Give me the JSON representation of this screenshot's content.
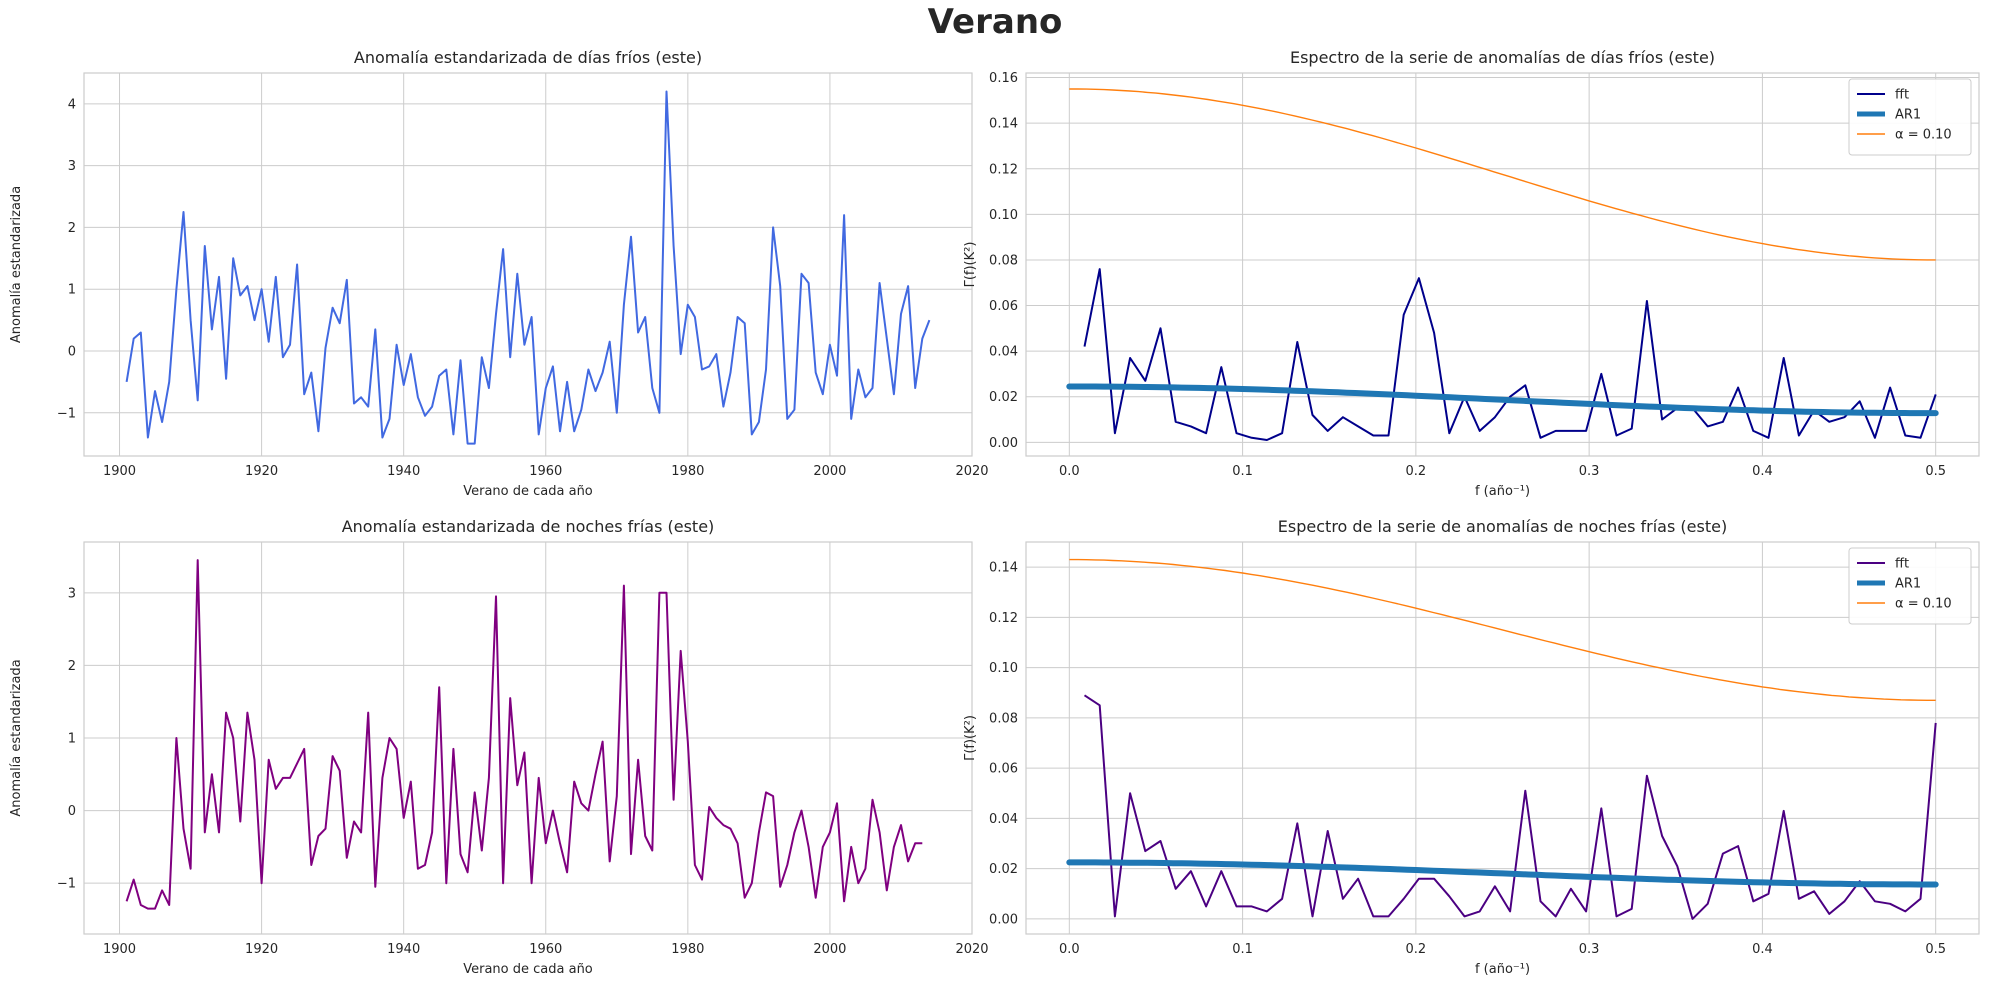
{
  "suptitle": "Verano",
  "chart_data": [
    {
      "type": "line",
      "title": "Anomalía estandarizada de días fríos (este)",
      "xlabel": "Verano de cada año",
      "ylabel": "Anomalía estandarizada",
      "xlim": [
        1895,
        2020
      ],
      "ylim": [
        -1.7,
        4.5
      ],
      "xticks": [
        1900,
        1920,
        1940,
        1960,
        1980,
        2000,
        2020
      ],
      "yticks": [
        -1,
        0,
        1,
        2,
        3,
        4
      ],
      "grid": true,
      "color": "#4169e1",
      "x_start": 1901,
      "y": [
        -0.5,
        0.2,
        0.3,
        -1.4,
        -0.65,
        -1.15,
        -0.5,
        1.0,
        2.25,
        0.5,
        -0.8,
        1.7,
        0.35,
        1.2,
        -0.45,
        1.5,
        0.9,
        1.05,
        0.5,
        1.0,
        0.15,
        1.2,
        -0.1,
        0.1,
        1.4,
        -0.7,
        -0.35,
        -1.3,
        0.05,
        0.7,
        0.45,
        1.15,
        -0.85,
        -0.75,
        -0.9,
        0.35,
        -1.4,
        -1.1,
        0.1,
        -0.55,
        -0.05,
        -0.75,
        -1.05,
        -0.9,
        -0.4,
        -0.3,
        -1.35,
        -0.15,
        -1.5,
        -1.5,
        -0.1,
        -0.6,
        0.6,
        1.65,
        -0.1,
        1.25,
        0.1,
        0.55,
        -1.35,
        -0.6,
        -0.25,
        -1.3,
        -0.5,
        -1.3,
        -0.95,
        -0.3,
        -0.65,
        -0.35,
        0.15,
        -1.0,
        0.75,
        1.85,
        0.3,
        0.55,
        -0.6,
        -1.0,
        4.2,
        1.7,
        -0.05,
        0.75,
        0.55,
        -0.3,
        -0.25,
        -0.05,
        -0.9,
        -0.35,
        0.55,
        0.45,
        -1.35,
        -1.15,
        -0.3,
        2.0,
        1.05,
        -1.1,
        -0.95,
        1.25,
        1.1,
        -0.35,
        -0.7,
        0.1,
        -0.4,
        2.2,
        -1.1,
        -0.3,
        -0.75,
        -0.6,
        1.1,
        0.2,
        -0.7,
        0.6,
        1.05,
        -0.6,
        0.2,
        0.5
      ]
    },
    {
      "type": "line",
      "title": "Espectro de la serie de anomalías de días fríos (este)",
      "xlabel": "f (año⁻¹)",
      "ylabel": "Γ(f)(K²)",
      "xlim": [
        -0.025,
        0.525
      ],
      "ylim": [
        -0.006,
        0.162
      ],
      "xticks": [
        0.0,
        0.1,
        0.2,
        0.3,
        0.4,
        0.5
      ],
      "yticks": [
        0.0,
        0.02,
        0.04,
        0.06,
        0.08,
        0.1,
        0.12,
        0.14,
        0.16
      ],
      "grid": true,
      "legend_position": "top-right",
      "series": [
        {
          "name": "fft",
          "color": "#00008b",
          "x_step": 0.008772,
          "x_start": 0.008772,
          "values": [
            0.042,
            0.076,
            0.004,
            0.037,
            0.027,
            0.05,
            0.009,
            0.007,
            0.004,
            0.033,
            0.004,
            0.002,
            0.001,
            0.004,
            0.044,
            0.012,
            0.005,
            0.011,
            0.007,
            0.003,
            0.003,
            0.056,
            0.072,
            0.048,
            0.004,
            0.02,
            0.005,
            0.011,
            0.02,
            0.025,
            0.002,
            0.005,
            0.005,
            0.005,
            0.03,
            0.003,
            0.006,
            0.062,
            0.01,
            0.015,
            0.015,
            0.007,
            0.009,
            0.024,
            0.005,
            0.002,
            0.037,
            0.003,
            0.014,
            0.009,
            0.011,
            0.018,
            0.002,
            0.024,
            0.003,
            0.002,
            0.021
          ]
        },
        {
          "name": "AR1",
          "color": "#1f77b4",
          "endpoints": [
            0.0245,
            0.0128
          ]
        },
        {
          "name": "α = 0.10",
          "color": "#ff7f0e",
          "endpoints": [
            0.155,
            0.08
          ]
        }
      ]
    },
    {
      "type": "line",
      "title": "Anomalía estandarizada de noches frías (este)",
      "xlabel": "Verano de cada año",
      "ylabel": "Anomalía estandarizada",
      "xlim": [
        1895,
        2020
      ],
      "ylim": [
        -1.7,
        3.7
      ],
      "xticks": [
        1900,
        1920,
        1940,
        1960,
        1980,
        2000,
        2020
      ],
      "yticks": [
        -1,
        0,
        1,
        2,
        3
      ],
      "grid": true,
      "color": "#800080",
      "x_start": 1901,
      "y": [
        -1.25,
        -0.95,
        -1.3,
        -1.35,
        -1.35,
        -1.1,
        -1.3,
        1.0,
        -0.25,
        -0.8,
        3.45,
        -0.3,
        0.5,
        -0.3,
        1.35,
        1.0,
        -0.15,
        1.35,
        0.7,
        -1.0,
        0.7,
        0.3,
        0.45,
        0.45,
        0.65,
        0.85,
        -0.75,
        -0.35,
        -0.25,
        0.75,
        0.55,
        -0.65,
        -0.15,
        -0.3,
        1.35,
        -1.05,
        0.45,
        1.0,
        0.85,
        -0.1,
        0.4,
        -0.8,
        -0.75,
        -0.3,
        1.7,
        -1.0,
        0.85,
        -0.6,
        -0.85,
        0.25,
        -0.55,
        0.45,
        2.95,
        -1.0,
        1.55,
        0.35,
        0.8,
        -1.0,
        0.45,
        -0.45,
        0.0,
        -0.45,
        -0.85,
        0.4,
        0.1,
        0.0,
        0.5,
        0.95,
        -0.7,
        0.2,
        3.1,
        -0.6,
        0.7,
        -0.35,
        -0.55,
        3.0,
        3.0,
        0.15,
        2.2,
        0.95,
        -0.75,
        -0.95,
        0.05,
        -0.1,
        -0.2,
        -0.25,
        -0.45,
        -1.2,
        -1.0,
        -0.3,
        0.25,
        0.2,
        -1.05,
        -0.75,
        -0.3,
        0.0,
        -0.5,
        -1.2,
        -0.5,
        -0.3,
        0.1,
        -1.25,
        -0.5,
        -1.0,
        -0.8,
        0.15,
        -0.3,
        -1.1,
        -0.5,
        -0.2,
        -0.7,
        -0.45,
        -0.45
      ]
    },
    {
      "type": "line",
      "title": "Espectro de la serie de anomalías de noches frías (este)",
      "xlabel": "f (año⁻¹)",
      "ylabel": "Γ(f)(K²)",
      "xlim": [
        -0.025,
        0.525
      ],
      "ylim": [
        -0.006,
        0.15
      ],
      "xticks": [
        0.0,
        0.1,
        0.2,
        0.3,
        0.4,
        0.5
      ],
      "yticks": [
        0.0,
        0.02,
        0.04,
        0.06,
        0.08,
        0.1,
        0.12,
        0.14
      ],
      "grid": true,
      "legend_position": "top-right",
      "series": [
        {
          "name": "fft",
          "color": "#4b0082",
          "x_step": 0.008772,
          "x_start": 0.008772,
          "values": [
            0.089,
            0.085,
            0.001,
            0.05,
            0.027,
            0.031,
            0.012,
            0.019,
            0.005,
            0.019,
            0.005,
            0.005,
            0.003,
            0.008,
            0.038,
            0.001,
            0.035,
            0.008,
            0.016,
            0.001,
            0.001,
            0.008,
            0.016,
            0.016,
            0.009,
            0.001,
            0.003,
            0.013,
            0.003,
            0.051,
            0.007,
            0.001,
            0.012,
            0.003,
            0.044,
            0.001,
            0.004,
            0.057,
            0.033,
            0.021,
            0.0,
            0.006,
            0.026,
            0.029,
            0.007,
            0.01,
            0.043,
            0.008,
            0.011,
            0.002,
            0.007,
            0.015,
            0.007,
            0.006,
            0.003,
            0.008,
            0.078
          ]
        },
        {
          "name": "AR1",
          "color": "#1f77b4",
          "endpoints": [
            0.0225,
            0.0137
          ]
        },
        {
          "name": "α = 0.10",
          "color": "#ff7f0e",
          "endpoints": [
            0.143,
            0.087
          ]
        }
      ]
    }
  ]
}
